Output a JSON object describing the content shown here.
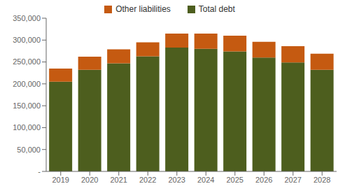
{
  "chart_data": {
    "type": "bar",
    "stacked": true,
    "legend": "top",
    "grid": false,
    "categories": [
      "2019",
      "2020",
      "2021",
      "2022",
      "2023",
      "2024",
      "2025",
      "2026",
      "2027",
      "2028"
    ],
    "series": [
      {
        "name": "Total debt",
        "color": "#4d5e1e",
        "values": [
          205000,
          232000,
          247000,
          263000,
          283000,
          280000,
          274000,
          260000,
          249000,
          232000
        ]
      },
      {
        "name": "Other liabilities",
        "color": "#c55a11",
        "values": [
          30000,
          30000,
          32000,
          32000,
          32000,
          35000,
          36000,
          36000,
          37000,
          37000
        ]
      }
    ],
    "ylim": [
      0,
      350000
    ],
    "yticks": [
      {
        "value": 0,
        "label": "-"
      },
      {
        "value": 50000,
        "label": "50,000"
      },
      {
        "value": 100000,
        "label": "100,000"
      },
      {
        "value": 150000,
        "label": "150,000"
      },
      {
        "value": 200000,
        "label": "200,000"
      },
      {
        "value": 250000,
        "label": "250,000"
      },
      {
        "value": 300000,
        "label": "300,000"
      },
      {
        "value": 350000,
        "label": "350,000"
      }
    ]
  }
}
